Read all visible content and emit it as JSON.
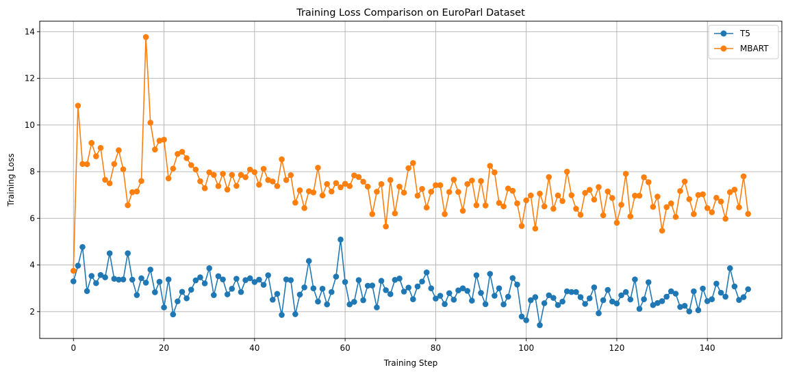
{
  "chart_data": {
    "type": "line",
    "title": "Training Loss Comparison on EuroParl Dataset",
    "xlabel": "Training Step",
    "ylabel": "Training Loss",
    "xlim": [
      -7.45,
      156.45
    ],
    "ylim": [
      0.85,
      14.45
    ],
    "xticks": [
      0,
      20,
      40,
      60,
      80,
      100,
      120,
      140
    ],
    "yticks": [
      2,
      4,
      6,
      8,
      10,
      12,
      14
    ],
    "grid": true,
    "legend_position": "top-right",
    "marker": "circle",
    "series": [
      {
        "name": "T5",
        "color": "#1f77b4",
        "values": [
          3.3,
          3.97,
          4.77,
          2.88,
          3.53,
          3.22,
          3.57,
          3.47,
          4.5,
          3.41,
          3.37,
          3.38,
          4.5,
          3.37,
          2.71,
          3.43,
          3.24,
          3.8,
          2.83,
          3.28,
          2.18,
          3.38,
          1.88,
          2.44,
          2.85,
          2.57,
          2.94,
          3.34,
          3.47,
          3.21,
          3.86,
          2.71,
          3.52,
          3.38,
          2.74,
          2.98,
          3.41,
          2.84,
          3.35,
          3.43,
          3.27,
          3.37,
          3.15,
          3.56,
          2.51,
          2.76,
          1.86,
          3.38,
          3.35,
          1.89,
          2.73,
          3.04,
          4.17,
          3.0,
          2.43,
          2.98,
          2.31,
          2.84,
          3.5,
          5.09,
          3.27,
          2.31,
          2.42,
          3.35,
          2.49,
          3.11,
          3.12,
          2.18,
          3.32,
          2.92,
          2.75,
          3.36,
          3.42,
          2.86,
          3.03,
          2.53,
          3.08,
          3.29,
          3.68,
          3.0,
          2.56,
          2.68,
          2.32,
          2.79,
          2.51,
          2.91,
          3.0,
          2.89,
          2.47,
          3.56,
          2.8,
          2.32,
          3.62,
          2.68,
          3.0,
          2.31,
          2.64,
          3.44,
          3.16,
          1.79,
          1.63,
          2.49,
          2.62,
          1.42,
          2.36,
          2.7,
          2.59,
          2.28,
          2.43,
          2.87,
          2.84,
          2.84,
          2.62,
          2.33,
          2.57,
          3.04,
          1.93,
          2.49,
          2.93,
          2.43,
          2.35,
          2.7,
          2.84,
          2.52,
          3.38,
          2.12,
          2.53,
          3.26,
          2.28,
          2.37,
          2.45,
          2.64,
          2.87,
          2.77,
          2.2,
          2.25,
          2.01,
          2.87,
          2.06,
          2.99,
          2.45,
          2.53,
          3.2,
          2.81,
          2.64,
          3.86,
          3.08,
          2.5,
          2.62,
          2.96
        ]
      },
      {
        "name": "MBART",
        "color": "#ff7f0e",
        "values": [
          3.75,
          10.83,
          8.33,
          8.32,
          9.23,
          8.66,
          9.02,
          7.65,
          7.5,
          8.33,
          8.92,
          8.1,
          6.56,
          7.12,
          7.15,
          7.6,
          13.77,
          10.1,
          8.95,
          9.33,
          9.37,
          7.71,
          8.13,
          8.76,
          8.85,
          8.58,
          8.28,
          8.09,
          7.59,
          7.29,
          7.97,
          7.86,
          7.38,
          7.91,
          7.23,
          7.86,
          7.39,
          7.86,
          7.76,
          8.09,
          7.98,
          7.44,
          8.12,
          7.64,
          7.58,
          7.38,
          8.53,
          7.64,
          7.85,
          6.67,
          7.2,
          6.44,
          7.16,
          7.11,
          8.17,
          6.98,
          7.47,
          7.15,
          7.51,
          7.33,
          7.48,
          7.38,
          7.84,
          7.77,
          7.57,
          7.36,
          6.18,
          7.14,
          7.47,
          5.65,
          7.64,
          6.21,
          7.36,
          7.1,
          8.15,
          8.37,
          6.97,
          7.26,
          6.46,
          7.14,
          7.42,
          7.42,
          6.18,
          7.13,
          7.66,
          7.13,
          6.32,
          7.47,
          7.62,
          6.56,
          7.6,
          6.55,
          8.25,
          7.97,
          6.66,
          6.51,
          7.28,
          7.18,
          6.64,
          5.67,
          6.77,
          6.98,
          5.56,
          7.06,
          6.51,
          7.77,
          6.41,
          6.98,
          6.74,
          8.0,
          6.99,
          6.41,
          6.15,
          7.09,
          7.22,
          6.8,
          7.34,
          6.13,
          7.15,
          6.87,
          5.81,
          6.58,
          7.91,
          6.08,
          6.97,
          6.97,
          7.76,
          7.55,
          6.49,
          6.93,
          5.47,
          6.48,
          6.64,
          6.06,
          7.17,
          7.58,
          6.82,
          6.18,
          7.0,
          7.03,
          6.44,
          6.26,
          6.88,
          6.72,
          5.98,
          7.12,
          7.23,
          6.47,
          7.8,
          6.19
        ]
      }
    ]
  }
}
